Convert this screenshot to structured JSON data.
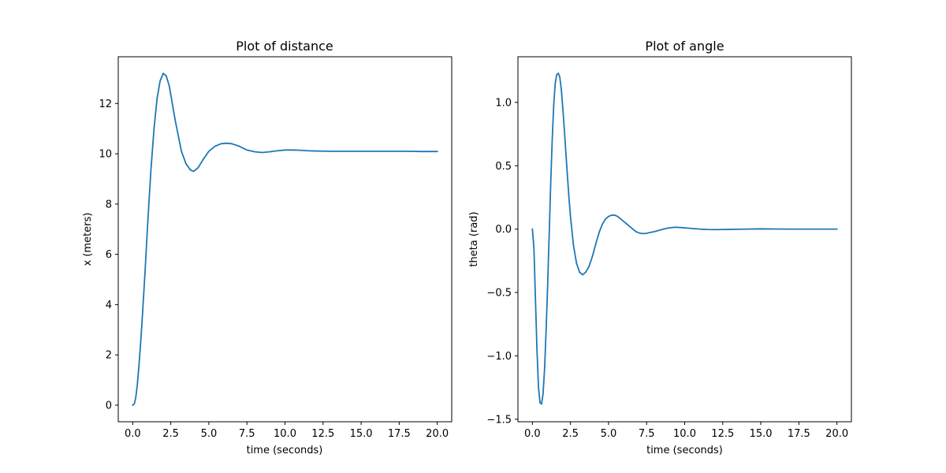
{
  "chart_data": [
    {
      "type": "line",
      "title": "Plot of distance",
      "xlabel": "time (seconds)",
      "ylabel": "x (meters)",
      "xlim": [
        -0.95,
        20.95
      ],
      "ylim": [
        -0.66,
        13.86
      ],
      "xticks": [
        0.0,
        2.5,
        5.0,
        7.5,
        10.0,
        12.5,
        15.0,
        17.5,
        20.0
      ],
      "xtick_labels": [
        "0.0",
        "2.5",
        "5.0",
        "7.5",
        "10.0",
        "12.5",
        "15.0",
        "17.5",
        "20.0"
      ],
      "yticks": [
        0,
        2,
        4,
        6,
        8,
        10,
        12
      ],
      "ytick_labels": [
        "0",
        "2",
        "4",
        "6",
        "8",
        "10",
        "12"
      ],
      "grid": false,
      "color": "#1f77b4",
      "series": [
        {
          "x": [
            0,
            0.1,
            0.2,
            0.3,
            0.4,
            0.5,
            0.6,
            0.8,
            1.0,
            1.2,
            1.4,
            1.6,
            1.8,
            2.0,
            2.2,
            2.4,
            2.6,
            2.8,
            3.0,
            3.2,
            3.5,
            3.8,
            4.0,
            4.3,
            4.6,
            5.0,
            5.4,
            5.8,
            6.2,
            6.5,
            7.0,
            7.5,
            8.0,
            8.5,
            9.0,
            9.5,
            10.0,
            10.5,
            11.0,
            11.5,
            12.0,
            13.0,
            14.0,
            15.0,
            16.0,
            17.0,
            18.0,
            19.0,
            20.0
          ],
          "values": [
            0.0,
            0.05,
            0.3,
            0.8,
            1.5,
            2.3,
            3.2,
            5.2,
            7.4,
            9.4,
            11.0,
            12.2,
            12.9,
            13.2,
            13.1,
            12.7,
            12.0,
            11.3,
            10.7,
            10.1,
            9.6,
            9.35,
            9.3,
            9.45,
            9.75,
            10.1,
            10.3,
            10.4,
            10.42,
            10.4,
            10.3,
            10.15,
            10.08,
            10.05,
            10.08,
            10.12,
            10.15,
            10.15,
            10.14,
            10.12,
            10.11,
            10.1,
            10.1,
            10.1,
            10.1,
            10.1,
            10.1,
            10.09,
            10.09
          ]
        }
      ]
    },
    {
      "type": "line",
      "title": "Plot of angle",
      "xlabel": "time (seconds)",
      "ylabel": "theta (rad)",
      "xlim": [
        -0.95,
        20.95
      ],
      "ylim": [
        -1.52,
        1.36
      ],
      "xticks": [
        0.0,
        2.5,
        5.0,
        7.5,
        10.0,
        12.5,
        15.0,
        17.5,
        20.0
      ],
      "xtick_labels": [
        "0.0",
        "2.5",
        "5.0",
        "7.5",
        "10.0",
        "12.5",
        "15.0",
        "17.5",
        "20.0"
      ],
      "yticks": [
        -1.5,
        -1.0,
        -0.5,
        0.0,
        0.5,
        1.0
      ],
      "ytick_labels": [
        "−1.5",
        "−1.0",
        "−0.5",
        "0.0",
        "0.5",
        "1.0"
      ],
      "grid": false,
      "color": "#1f77b4",
      "series": [
        {
          "x": [
            0,
            0.1,
            0.2,
            0.3,
            0.4,
            0.5,
            0.6,
            0.7,
            0.8,
            0.9,
            1.0,
            1.1,
            1.2,
            1.3,
            1.4,
            1.5,
            1.6,
            1.7,
            1.8,
            1.9,
            2.0,
            2.1,
            2.2,
            2.3,
            2.4,
            2.5,
            2.7,
            2.9,
            3.1,
            3.3,
            3.5,
            3.7,
            3.9,
            4.0,
            4.2,
            4.4,
            4.6,
            4.8,
            5.0,
            5.2,
            5.4,
            5.6,
            5.8,
            6.0,
            6.2,
            6.4,
            6.6,
            6.8,
            7.0,
            7.2,
            7.4,
            7.6,
            7.8,
            8.0,
            8.3,
            8.6,
            9.0,
            9.4,
            9.8,
            10.2,
            10.6,
            11.0,
            11.5,
            12.0,
            12.5,
            13.0,
            14.0,
            15.0,
            16.0,
            17.0,
            18.0,
            19.0,
            20.0
          ],
          "values": [
            0.0,
            -0.15,
            -0.55,
            -0.95,
            -1.25,
            -1.37,
            -1.38,
            -1.3,
            -1.1,
            -0.8,
            -0.45,
            -0.05,
            0.35,
            0.7,
            0.98,
            1.15,
            1.22,
            1.23,
            1.2,
            1.1,
            0.95,
            0.78,
            0.6,
            0.42,
            0.25,
            0.1,
            -0.13,
            -0.27,
            -0.34,
            -0.36,
            -0.34,
            -0.3,
            -0.23,
            -0.19,
            -0.1,
            -0.02,
            0.04,
            0.08,
            0.1,
            0.11,
            0.11,
            0.1,
            0.08,
            0.06,
            0.04,
            0.02,
            0.0,
            -0.02,
            -0.03,
            -0.035,
            -0.035,
            -0.03,
            -0.025,
            -0.02,
            -0.01,
            0.0,
            0.01,
            0.015,
            0.012,
            0.008,
            0.004,
            0.0,
            -0.003,
            -0.004,
            -0.003,
            -0.002,
            0.0,
            0.002,
            0.001,
            0.0,
            0.0,
            0.0,
            0.0
          ]
        }
      ]
    }
  ]
}
